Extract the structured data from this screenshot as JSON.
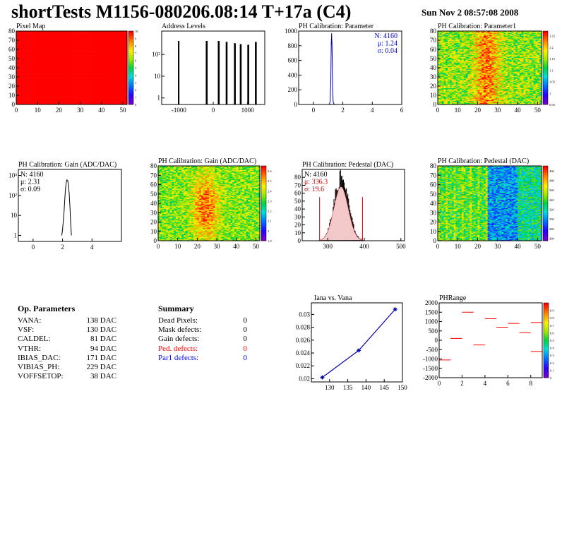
{
  "page": {
    "title": "shortTests M1156-080206.08:14 T+17a (C4)",
    "date": "Sun Nov  2 08:57:08 2008"
  },
  "op_params": {
    "header": "Op. Parameters",
    "rows": [
      {
        "name": "VANA:",
        "value": "138 DAC"
      },
      {
        "name": "VSF:",
        "value": "130 DAC"
      },
      {
        "name": "CALDEL:",
        "value": "81 DAC"
      },
      {
        "name": "VTHR:",
        "value": "94 DAC"
      },
      {
        "name": "IBIAS_DAC:",
        "value": "171 DAC"
      },
      {
        "name": "VIBIAS_PH:",
        "value": "229 DAC"
      },
      {
        "name": "VOFFSETOP:",
        "value": "38 DAC"
      }
    ]
  },
  "summary": {
    "header": "Summary",
    "rows": [
      {
        "name": "Dead Pixels:",
        "value": "0",
        "color": "#000000"
      },
      {
        "name": "Mask defects:",
        "value": "0",
        "color": "#000000"
      },
      {
        "name": "Gain defects:",
        "value": "0",
        "color": "#000000"
      },
      {
        "name": "Ped. defects:",
        "value": "0",
        "color": "#ff0000"
      },
      {
        "name": "Par1 defects:",
        "value": "0",
        "color": "#0000ff"
      }
    ]
  },
  "chart_data": [
    {
      "id": "pixel_map",
      "type": "heatmap",
      "title": "Pixel Map",
      "xlim": [
        0,
        52
      ],
      "ylim": [
        0,
        80
      ],
      "xticks": [
        "0",
        "10",
        "20",
        "30",
        "40",
        "50"
      ],
      "xtick_values": [
        0,
        10,
        20,
        30,
        40,
        50
      ],
      "yticks": [
        "0",
        "10",
        "20",
        "30",
        "40",
        "50",
        "60",
        "70",
        "80"
      ],
      "ytick_values": [
        0,
        10,
        20,
        30,
        40,
        50,
        60,
        70,
        80
      ],
      "zticks": [
        "0",
        "1",
        "2",
        "3",
        "4",
        "5",
        "6",
        "7",
        "8",
        "9",
        "10"
      ],
      "zlim": [
        0,
        10
      ],
      "fill_value": 10
    },
    {
      "id": "address_levels",
      "type": "bar",
      "title": "Address Levels",
      "xlim": [
        -1500,
        1500
      ],
      "yscale": "log",
      "ylim": [
        0.5,
        1200
      ],
      "xticks": [
        "-1000",
        "0",
        "1000"
      ],
      "xtick_values": [
        -1000,
        0,
        1000
      ],
      "yticks": [
        "1",
        "10",
        "10²"
      ],
      "ytick_values": [
        1,
        10,
        100
      ],
      "x": [
        -1010,
        -1000,
        -200,
        -180,
        150,
        170,
        380,
        400,
        620,
        640,
        790,
        810,
        1010,
        1030,
        1230,
        1250
      ],
      "values": [
        420,
        420,
        420,
        420,
        420,
        420,
        380,
        380,
        330,
        330,
        300,
        300,
        280,
        280,
        380,
        380
      ]
    },
    {
      "id": "ph_parameter",
      "type": "line",
      "title": "PH Calibration: Parameter",
      "xlim": [
        -1,
        6
      ],
      "ylim": [
        0,
        1000
      ],
      "xticks": [
        "0",
        "2",
        "4",
        "6"
      ],
      "xtick_values": [
        0,
        2,
        4,
        6
      ],
      "yticks": [
        "0",
        "200",
        "400",
        "600",
        "800",
        "1000"
      ],
      "ytick_values": [
        0,
        200,
        400,
        600,
        800,
        1000
      ],
      "x": [
        1.0,
        1.08,
        1.14,
        1.18,
        1.21,
        1.24,
        1.27,
        1.3,
        1.34,
        1.4,
        1.5
      ],
      "values": [
        0,
        2,
        40,
        300,
        800,
        970,
        800,
        300,
        40,
        2,
        0
      ],
      "stats": [
        "N: 4160",
        "μ: 1.24",
        "σ: 0.04"
      ]
    },
    {
      "id": "ph_parameter1",
      "type": "heatmap",
      "title": "PH Calibration: Parameter1",
      "xlim": [
        0,
        52
      ],
      "ylim": [
        0,
        80
      ],
      "xticks": [
        "0",
        "10",
        "20",
        "30",
        "40",
        "50"
      ],
      "xtick_values": [
        0,
        10,
        20,
        30,
        40,
        50
      ],
      "yticks": [
        "0",
        "10",
        "20",
        "30",
        "40",
        "50",
        "60",
        "70",
        "80"
      ],
      "ytick_values": [
        0,
        10,
        20,
        30,
        40,
        50,
        60,
        70,
        80
      ],
      "zticks": [
        "0.95",
        "1",
        "1.05",
        "1.1",
        "1.15",
        "1.2",
        "1.25"
      ],
      "zlim": [
        0.95,
        1.27
      ]
    },
    {
      "id": "ph_gain_hist",
      "type": "line",
      "title": "PH Calibration: Gain (ADC/DAC)",
      "xlim": [
        -1,
        6
      ],
      "yscale": "log",
      "ylim": [
        0.5,
        2000
      ],
      "xticks": [
        "0",
        "2",
        "4"
      ],
      "xtick_values": [
        0,
        2,
        4
      ],
      "yticks": [
        "1",
        "10",
        "10²",
        "10³"
      ],
      "ytick_values": [
        1,
        10,
        100,
        1000
      ],
      "x": [
        1.95,
        2.0,
        2.05,
        2.1,
        2.15,
        2.2,
        2.25,
        2.3,
        2.35,
        2.4,
        2.45,
        2.5,
        2.55,
        2.6
      ],
      "values": [
        1,
        2,
        5,
        15,
        60,
        200,
        450,
        600,
        550,
        350,
        120,
        30,
        5,
        1
      ],
      "stats": [
        "N: 4160",
        "μ: 2.31",
        "σ: 0.09"
      ]
    },
    {
      "id": "ph_gain_map",
      "type": "heatmap",
      "title": "PH Calibration: Gain (ADC/DAC)",
      "xlim": [
        0,
        52
      ],
      "ylim": [
        0,
        80
      ],
      "xticks": [
        "0",
        "10",
        "20",
        "30",
        "40",
        "50"
      ],
      "xtick_values": [
        0,
        10,
        20,
        30,
        40,
        50
      ],
      "yticks": [
        "0",
        "10",
        "20",
        "30",
        "40",
        "50",
        "60",
        "70",
        "80"
      ],
      "ytick_values": [
        0,
        10,
        20,
        30,
        40,
        50,
        60,
        70,
        80
      ],
      "zticks": [
        "1.9",
        "2",
        "2.1",
        "2.2",
        "2.3",
        "2.4",
        "2.5",
        "2.6"
      ],
      "zlim": [
        1.9,
        2.65
      ]
    },
    {
      "id": "ph_pedestal_hist",
      "type": "bar",
      "title": "PH Calibration: Pedestal (DAC)",
      "xlim": [
        230,
        510
      ],
      "ylim": [
        0,
        90
      ],
      "xticks": [
        "300",
        "400",
        "500"
      ],
      "xtick_values": [
        300,
        400,
        500
      ],
      "yticks": [
        "0",
        "10",
        "20",
        "30",
        "40",
        "50",
        "60",
        "70",
        "80"
      ],
      "ytick_values": [
        0,
        10,
        20,
        30,
        40,
        50,
        60,
        70,
        80
      ],
      "mu": 336.3,
      "sigma": 19.6,
      "peak": 80,
      "cut_lines": [
        277.5,
        395.1
      ],
      "stats": [
        "N: 4160",
        "μ: 336.3",
        "σ: 19.6"
      ]
    },
    {
      "id": "ph_pedestal_map",
      "type": "heatmap",
      "title": "PH Calibration: Pedestal (DAC)",
      "xlim": [
        0,
        52
      ],
      "ylim": [
        0,
        80
      ],
      "xticks": [
        "0",
        "10",
        "20",
        "30",
        "40",
        "50"
      ],
      "xtick_values": [
        0,
        10,
        20,
        30,
        40,
        50
      ],
      "yticks": [
        "0",
        "10",
        "20",
        "30",
        "40",
        "50",
        "60",
        "70",
        "80"
      ],
      "ytick_values": [
        0,
        10,
        20,
        30,
        40,
        50,
        60,
        70,
        80
      ],
      "zticks": [
        "260",
        "280",
        "300",
        "320",
        "340",
        "360",
        "380",
        "400"
      ],
      "zlim": [
        255,
        410
      ]
    },
    {
      "id": "iana_vana",
      "type": "line",
      "title": "Iana vs. Vana",
      "xlim": [
        125,
        150
      ],
      "ylim": [
        0.0195,
        0.0318
      ],
      "xticks": [
        "130",
        "135",
        "140",
        "145",
        "150"
      ],
      "xtick_values": [
        130,
        135,
        140,
        145,
        150
      ],
      "yticks": [
        "0.02",
        "0.022",
        "0.024",
        "0.026",
        "0.028",
        "0.03"
      ],
      "ytick_values": [
        0.02,
        0.022,
        0.024,
        0.026,
        0.028,
        0.03
      ],
      "x": [
        128,
        138,
        148
      ],
      "values": [
        0.0202,
        0.0244,
        0.0308
      ]
    },
    {
      "id": "phrange",
      "type": "heatmap",
      "title": "PHRange",
      "xlim": [
        0,
        9
      ],
      "ylim": [
        -2000,
        2000
      ],
      "xticks": [
        "0",
        "2",
        "4",
        "6",
        "8"
      ],
      "xtick_values": [
        0,
        2,
        4,
        6,
        8
      ],
      "yticks": [
        "-2000",
        "-1500",
        "-1000",
        "-500",
        "0",
        "500",
        "1000",
        "1500",
        "2000"
      ],
      "ytick_values": [
        -2000,
        -1500,
        -1000,
        -500,
        0,
        500,
        1000,
        1500,
        2000
      ],
      "zticks": [
        "0",
        "0.1",
        "0.2",
        "0.3",
        "0.4",
        "0.5",
        "0.6",
        "0.7",
        "0.8",
        "0.9"
      ],
      "zlim": [
        0,
        1
      ],
      "segments": [
        {
          "x0": 0,
          "x1": 1,
          "y": -1050
        },
        {
          "x0": 1,
          "x1": 2,
          "y": 100
        },
        {
          "x0": 2,
          "x1": 3,
          "y": 1500
        },
        {
          "x0": 3,
          "x1": 4,
          "y": -250
        },
        {
          "x0": 4,
          "x1": 5,
          "y": 1150
        },
        {
          "x0": 5,
          "x1": 6,
          "y": 700
        },
        {
          "x0": 6,
          "x1": 7,
          "y": 900
        },
        {
          "x0": 7,
          "x1": 8,
          "y": 400
        },
        {
          "x0": 8,
          "x1": 9,
          "y": 950
        },
        {
          "x0": 8,
          "x1": 9,
          "y": -600
        }
      ]
    }
  ]
}
